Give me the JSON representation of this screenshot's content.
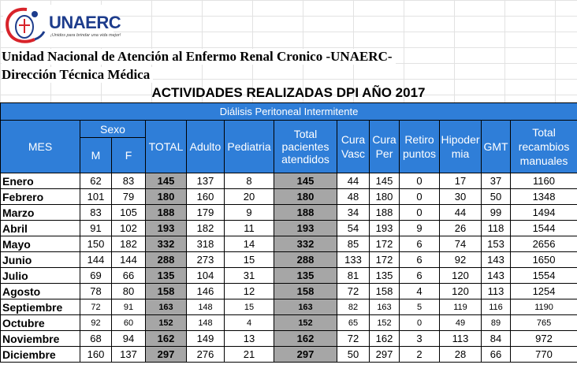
{
  "logo": {
    "name": "UNAERC",
    "tagline": "¡Unidos para brindar una vida mejor!"
  },
  "header": {
    "line1": "Unidad Nacional de Atención al Enfermo Renal Cronico -UNAERC-",
    "line2": "Dirección Técnica Médica",
    "title": "ACTIVIDADES REALIZADAS DPI AÑO 2017"
  },
  "table": {
    "section": "Diálisis Peritoneal Intermitente",
    "headers": {
      "mes": "MES",
      "sexo": "Sexo",
      "m": "M",
      "f": "F",
      "total": "TOTAL",
      "adulto": "Adulto",
      "pediatria": "Pediatria",
      "total_pacientes": "Total pacientes atendidos",
      "cura_vasc": "Cura Vasc",
      "cura_per": "Cura Per",
      "retiro": "Retiro puntos",
      "hipodermia": "Hipoder mia",
      "gmt": "GMT",
      "recambios": "Total recambios manuales"
    },
    "rows": [
      [
        "Enero",
        "62",
        "83",
        "145",
        "137",
        "8",
        "145",
        "44",
        "145",
        "0",
        "17",
        "37",
        "1160"
      ],
      [
        "Febrero",
        "101",
        "79",
        "180",
        "160",
        "20",
        "180",
        "48",
        "180",
        "0",
        "30",
        "50",
        "1348"
      ],
      [
        "Marzo",
        "83",
        "105",
        "188",
        "179",
        "9",
        "188",
        "34",
        "188",
        "0",
        "44",
        "99",
        "1494"
      ],
      [
        "Abril",
        "91",
        "102",
        "193",
        "182",
        "11",
        "193",
        "54",
        "193",
        "9",
        "26",
        "118",
        "1544"
      ],
      [
        "Mayo",
        "150",
        "182",
        "332",
        "318",
        "14",
        "332",
        "85",
        "172",
        "6",
        "74",
        "153",
        "2656"
      ],
      [
        "Junio",
        "144",
        "144",
        "288",
        "273",
        "15",
        "288",
        "133",
        "172",
        "6",
        "92",
        "143",
        "1650"
      ],
      [
        "Julio",
        "69",
        "66",
        "135",
        "104",
        "31",
        "135",
        "81",
        "135",
        "6",
        "120",
        "143",
        "1554"
      ],
      [
        "Agosto",
        "78",
        "80",
        "158",
        "146",
        "12",
        "158",
        "72",
        "158",
        "4",
        "120",
        "113",
        "1254"
      ],
      [
        "Septiembre",
        "72",
        "91",
        "163",
        "148",
        "15",
        "163",
        "82",
        "163",
        "5",
        "119",
        "116",
        "1190"
      ],
      [
        "Octubre",
        "92",
        "60",
        "152",
        "148",
        "4",
        "152",
        "65",
        "152",
        "0",
        "49",
        "89",
        "765"
      ],
      [
        "Noviembre",
        "68",
        "94",
        "162",
        "149",
        "13",
        "162",
        "72",
        "162",
        "3",
        "113",
        "84",
        "972"
      ],
      [
        "Diciembre",
        "160",
        "137",
        "297",
        "276",
        "21",
        "297",
        "50",
        "297",
        "2",
        "28",
        "66",
        "770"
      ]
    ]
  }
}
